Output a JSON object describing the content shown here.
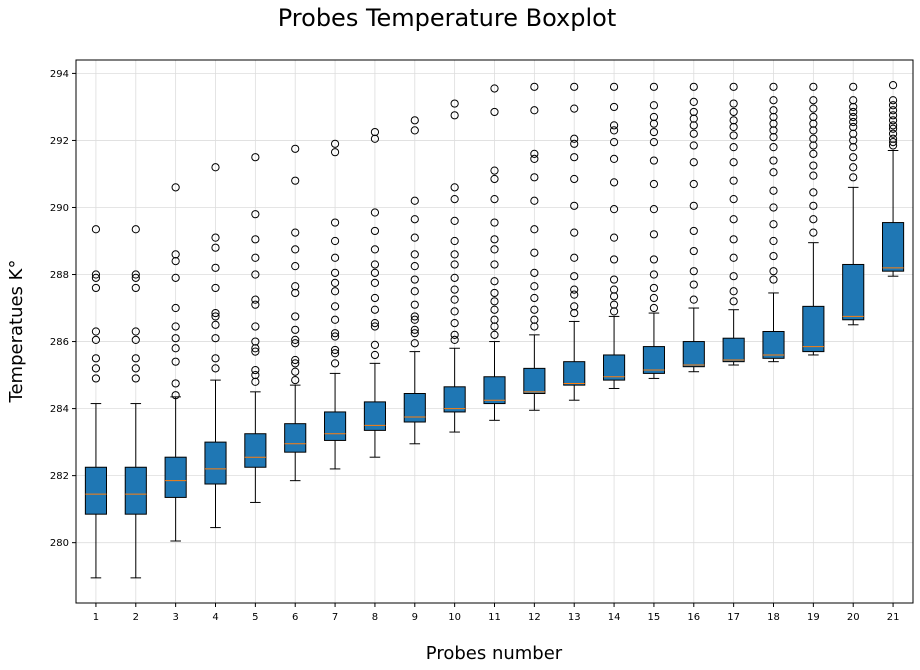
{
  "chart_data": {
    "type": "boxplot",
    "title": "Probes Temperature Boxplot",
    "xlabel": "Probes number",
    "ylabel": "Temperatues K°",
    "ylim": [
      278.2,
      294.4
    ],
    "yticks": [
      280,
      282,
      284,
      286,
      288,
      290,
      292,
      294
    ],
    "grid": true,
    "box_color": "#1f77b4",
    "median_color": "#ff7f0e",
    "categories": [
      "1",
      "2",
      "3",
      "4",
      "5",
      "6",
      "7",
      "8",
      "9",
      "10",
      "11",
      "12",
      "13",
      "14",
      "15",
      "16",
      "17",
      "18",
      "19",
      "20",
      "21"
    ],
    "boxes": [
      {
        "wlo": 278.95,
        "q1": 280.85,
        "med": 281.45,
        "q3": 282.25,
        "whi": 284.15,
        "fliers": [
          284.9,
          285.2,
          285.5,
          286.05,
          286.3,
          287.6,
          287.9,
          288.0,
          289.35
        ]
      },
      {
        "wlo": 278.95,
        "q1": 280.85,
        "med": 281.45,
        "q3": 282.25,
        "whi": 284.15,
        "fliers": [
          284.9,
          285.2,
          285.5,
          286.05,
          286.3,
          287.6,
          287.9,
          288.0,
          289.35
        ]
      },
      {
        "wlo": 280.05,
        "q1": 281.35,
        "med": 281.85,
        "q3": 282.55,
        "whi": 284.35,
        "fliers": [
          284.4,
          284.75,
          285.4,
          285.8,
          286.1,
          286.45,
          287.0,
          287.9,
          288.4,
          288.6,
          290.6
        ]
      },
      {
        "wlo": 280.45,
        "q1": 281.75,
        "med": 282.2,
        "q3": 283.0,
        "whi": 284.85,
        "fliers": [
          285.2,
          285.5,
          286.1,
          286.5,
          286.75,
          286.85,
          287.6,
          288.2,
          288.8,
          289.1,
          291.2
        ]
      },
      {
        "wlo": 281.2,
        "q1": 282.25,
        "med": 282.55,
        "q3": 283.25,
        "whi": 284.5,
        "fliers": [
          284.8,
          285.0,
          285.15,
          285.7,
          285.8,
          286.0,
          286.45,
          287.1,
          287.25,
          288.0,
          288.5,
          289.05,
          289.8,
          291.5
        ]
      },
      {
        "wlo": 281.85,
        "q1": 282.7,
        "med": 282.95,
        "q3": 283.55,
        "whi": 284.7,
        "fliers": [
          284.85,
          285.1,
          285.35,
          285.45,
          285.95,
          286.05,
          286.35,
          286.75,
          287.45,
          287.65,
          288.25,
          288.75,
          289.25,
          290.8,
          291.75
        ]
      },
      {
        "wlo": 282.2,
        "q1": 283.05,
        "med": 283.25,
        "q3": 283.9,
        "whi": 285.05,
        "fliers": [
          285.35,
          285.65,
          285.75,
          286.15,
          286.25,
          286.65,
          287.05,
          287.5,
          287.75,
          288.05,
          288.5,
          289.0,
          289.55,
          291.65,
          291.9
        ]
      },
      {
        "wlo": 282.55,
        "q1": 283.35,
        "med": 283.5,
        "q3": 284.2,
        "whi": 285.35,
        "fliers": [
          285.6,
          285.9,
          286.45,
          286.55,
          286.95,
          287.3,
          287.75,
          288.05,
          288.3,
          288.75,
          289.3,
          289.85,
          292.05,
          292.25
        ]
      },
      {
        "wlo": 282.95,
        "q1": 283.6,
        "med": 283.75,
        "q3": 284.45,
        "whi": 285.7,
        "fliers": [
          285.95,
          286.25,
          286.35,
          286.65,
          286.75,
          287.1,
          287.5,
          287.85,
          288.25,
          288.6,
          289.1,
          289.65,
          290.2,
          292.3,
          292.6
        ]
      },
      {
        "wlo": 283.3,
        "q1": 283.9,
        "med": 284.0,
        "q3": 284.65,
        "whi": 285.8,
        "fliers": [
          286.05,
          286.2,
          286.55,
          286.9,
          287.25,
          287.55,
          287.9,
          288.3,
          288.6,
          289.0,
          289.6,
          290.25,
          290.6,
          292.75,
          293.1
        ]
      },
      {
        "wlo": 283.65,
        "q1": 284.15,
        "med": 284.25,
        "q3": 284.95,
        "whi": 286.0,
        "fliers": [
          286.2,
          286.45,
          286.65,
          286.95,
          287.2,
          287.45,
          287.8,
          288.3,
          288.75,
          289.05,
          289.55,
          290.25,
          290.85,
          291.1,
          292.85,
          293.55
        ]
      },
      {
        "wlo": 283.95,
        "q1": 284.45,
        "med": 284.5,
        "q3": 285.2,
        "whi": 286.2,
        "fliers": [
          286.45,
          286.65,
          286.95,
          287.3,
          287.65,
          288.05,
          288.65,
          289.35,
          290.2,
          290.9,
          291.45,
          291.6,
          292.9,
          293.6
        ]
      },
      {
        "wlo": 284.25,
        "q1": 284.7,
        "med": 284.75,
        "q3": 285.4,
        "whi": 286.6,
        "fliers": [
          286.85,
          287.05,
          287.4,
          287.55,
          287.95,
          288.5,
          289.25,
          290.05,
          290.85,
          291.5,
          291.9,
          292.05,
          292.95,
          293.6
        ]
      },
      {
        "wlo": 284.6,
        "q1": 284.85,
        "med": 284.95,
        "q3": 285.6,
        "whi": 286.75,
        "fliers": [
          286.9,
          287.1,
          287.35,
          287.55,
          287.85,
          288.45,
          289.1,
          289.95,
          290.75,
          291.45,
          291.95,
          292.3,
          292.45,
          293.0,
          293.6
        ]
      },
      {
        "wlo": 284.9,
        "q1": 285.05,
        "med": 285.15,
        "q3": 285.85,
        "whi": 286.85,
        "fliers": [
          287.0,
          287.3,
          287.6,
          288.0,
          288.45,
          289.2,
          289.95,
          290.7,
          291.4,
          291.95,
          292.25,
          292.5,
          292.7,
          293.05,
          293.6
        ]
      },
      {
        "wlo": 285.1,
        "q1": 285.25,
        "med": 285.3,
        "q3": 286.0,
        "whi": 287.0,
        "fliers": [
          287.25,
          287.7,
          288.1,
          288.7,
          289.3,
          290.05,
          290.7,
          291.35,
          291.85,
          292.2,
          292.45,
          292.65,
          292.85,
          293.15,
          293.6
        ]
      },
      {
        "wlo": 285.3,
        "q1": 285.4,
        "med": 285.45,
        "q3": 286.1,
        "whi": 286.95,
        "fliers": [
          287.2,
          287.5,
          287.95,
          288.5,
          289.05,
          289.65,
          290.25,
          290.8,
          291.35,
          291.8,
          292.15,
          292.4,
          292.6,
          292.85,
          293.1,
          293.6
        ]
      },
      {
        "wlo": 285.4,
        "q1": 285.5,
        "med": 285.6,
        "q3": 286.3,
        "whi": 287.45,
        "fliers": [
          287.85,
          288.1,
          288.55,
          289.0,
          289.5,
          290.0,
          290.5,
          291.05,
          291.4,
          291.8,
          292.1,
          292.3,
          292.5,
          292.7,
          292.9,
          293.2,
          293.6
        ]
      },
      {
        "wlo": 285.6,
        "q1": 285.7,
        "med": 285.85,
        "q3": 287.05,
        "whi": 288.95,
        "fliers": [
          289.25,
          289.65,
          290.05,
          290.45,
          290.95,
          291.25,
          291.6,
          291.85,
          292.05,
          292.3,
          292.5,
          292.7,
          292.95,
          293.2,
          293.6
        ]
      },
      {
        "wlo": 286.5,
        "q1": 286.65,
        "med": 286.75,
        "q3": 288.3,
        "whi": 290.6,
        "fliers": [
          290.9,
          291.2,
          291.5,
          291.8,
          292.0,
          292.2,
          292.4,
          292.55,
          292.7,
          292.85,
          293.0,
          293.2,
          293.6
        ]
      },
      {
        "wlo": 287.95,
        "q1": 288.1,
        "med": 288.2,
        "q3": 289.55,
        "whi": 291.7,
        "fliers": [
          291.85,
          291.95,
          292.05,
          292.2,
          292.35,
          292.45,
          292.6,
          292.75,
          292.9,
          293.05,
          293.2,
          293.65
        ]
      }
    ]
  }
}
